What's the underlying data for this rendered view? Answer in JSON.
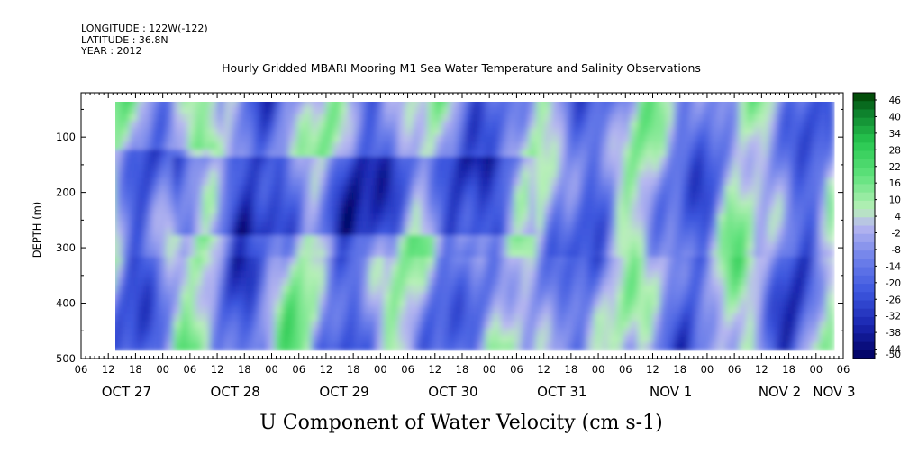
{
  "header": {
    "longitude": "LONGITUDE : 122W(-122)",
    "latitude": "LATITUDE : 36.8N",
    "year": "YEAR : 2012",
    "title": "Hourly Gridded MBARI Mooring M1 Sea Water Temperature and Salinity Observations"
  },
  "chart_data": {
    "type": "heatmap",
    "title": "U Component of Water Velocity (cm s-1)",
    "xlabel": "",
    "ylabel": "DEPTH (m)",
    "y_range": [
      500,
      20
    ],
    "y_ticks": [
      "100",
      "200",
      "300",
      "400",
      "500"
    ],
    "x_hour_ticks": [
      "06",
      "12",
      "18",
      "00",
      "06",
      "12",
      "18",
      "00",
      "06",
      "12",
      "18",
      "00",
      "06",
      "12",
      "18",
      "00",
      "06",
      "12",
      "18",
      "00",
      "06",
      "12",
      "18",
      "00",
      "06",
      "12",
      "18",
      "00",
      "06"
    ],
    "x_day_labels": [
      "OCT 27",
      "OCT 28",
      "OCT 29",
      "OCT 30",
      "OCT 31",
      "NOV 1",
      "NOV 2",
      "NOV 3"
    ],
    "time_range": [
      "2012-10-27 06:00",
      "2012-11-03 06:00"
    ],
    "data_time_range": [
      "2012-10-27 12:00",
      "2012-11-03 04:00"
    ],
    "data_depth_range": [
      20,
      485
    ],
    "colorbar_levels": [
      "46",
      "40",
      "34",
      "28",
      "22",
      "16",
      "10",
      "4",
      "-2",
      "-8",
      "-14",
      "-20",
      "-26",
      "-32",
      "-38",
      "-44",
      "-50"
    ],
    "colorbar_range": [
      -50,
      46
    ],
    "colors": {
      "positive_dark": "#004000",
      "positive": "#2ddc5a",
      "positive_light": "#b8f0b8",
      "negative_light": "#b8b8f0",
      "negative": "#4a62e4",
      "negative_dark": "#000060"
    }
  }
}
